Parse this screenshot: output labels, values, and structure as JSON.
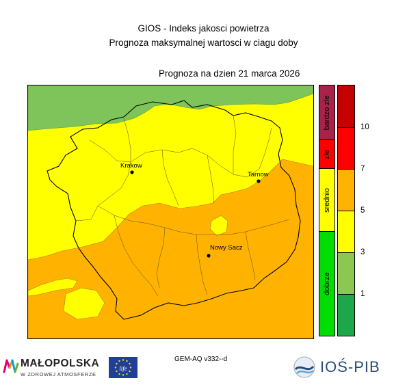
{
  "header": {
    "title_line1": "GIOS - Indeks jakosci powietrza",
    "title_line2": "Prognoza maksymalnej wartosci w ciagu doby",
    "forecast_date": "Prognoza na dzien  21 marca 2026"
  },
  "map": {
    "cities": [
      {
        "name": "Krakow"
      },
      {
        "name": "Tarnow"
      },
      {
        "name": "Nowy Sacz"
      }
    ],
    "fill_colors": {
      "green": "#7ec45a",
      "yellow": "#ffff00",
      "orange": "#ffb300"
    }
  },
  "legend": {
    "categories": [
      {
        "label": "bardzo zle",
        "color": "#a8224a"
      },
      {
        "label": "zle",
        "color": "#ff0000"
      },
      {
        "label": "srednio",
        "color": "#ffff00"
      },
      {
        "label": "dobrze",
        "color": "#00dd00"
      }
    ],
    "scale": [
      {
        "from": 10,
        "color": "#c40000"
      },
      {
        "from": 7,
        "color": "#ff0000"
      },
      {
        "from": 5,
        "color": "#ffb300"
      },
      {
        "from": 3,
        "color": "#ffff00"
      },
      {
        "from": 1,
        "color": "#8cc752"
      },
      {
        "from": 0,
        "color": "#1ea64a"
      }
    ],
    "tick_labels": [
      "10",
      "7",
      "5",
      "3",
      "1"
    ]
  },
  "footer": {
    "model_label": "GEM-AQ v332--d",
    "malopolska_name": "MAŁOPOLSKA",
    "malopolska_tagline": "W ZDROWEJ ATMOSFERZE",
    "eu_life_text": "life",
    "iospib_name": "IOŚ-PIB"
  }
}
